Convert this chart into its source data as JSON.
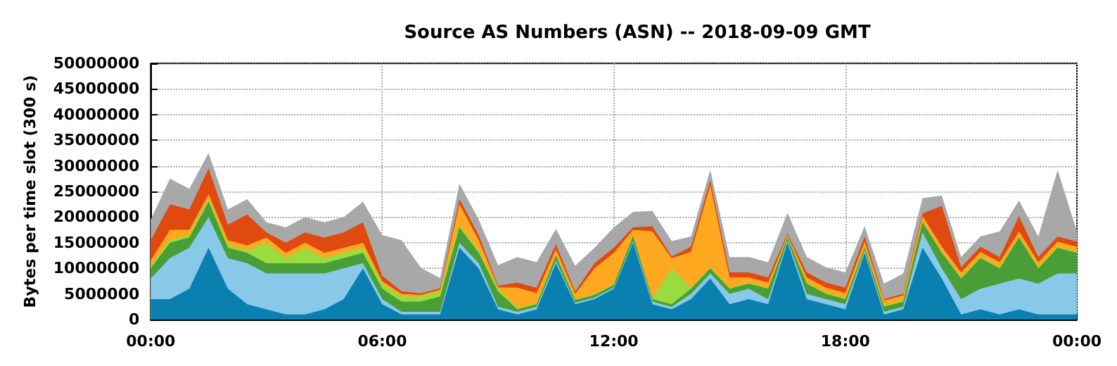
{
  "chart_data": {
    "type": "area",
    "stacked": true,
    "title": "Source AS Numbers (ASN) -- 2018-09-09 GMT",
    "ylabel": "Bytes per time slot (300 s)",
    "x": [
      0,
      0.5,
      1,
      1.5,
      2,
      2.5,
      3,
      3.5,
      4,
      4.5,
      5,
      5.5,
      6,
      6.5,
      7,
      7.5,
      8,
      8.5,
      9,
      9.5,
      10,
      10.5,
      11,
      11.5,
      12,
      12.5,
      13,
      13.5,
      14,
      14.5,
      15,
      15.5,
      16,
      16.5,
      17,
      17.5,
      18,
      18.5,
      19,
      19.5,
      20,
      20.5,
      21,
      21.5,
      22,
      22.5,
      23,
      23.5,
      24
    ],
    "series": [
      {
        "color": "#0a80b0",
        "values": [
          4000000.0,
          4000000.0,
          6000000.0,
          14000000.0,
          6000000.0,
          3000000.0,
          2000000.0,
          1000000.0,
          1000000.0,
          2000000.0,
          4000000.0,
          10000000.0,
          3000000.0,
          1000000.0,
          1000000.0,
          1000000.0,
          14000000.0,
          10000000.0,
          2000000.0,
          1000000.0,
          2000000.0,
          11000000.0,
          3000000.0,
          4000000.0,
          6000000.0,
          15000000.0,
          3000000.0,
          2000000.0,
          4000000.0,
          8000000.0,
          3000000.0,
          4000000.0,
          3000000.0,
          15000000.0,
          4000000.0,
          3000000.0,
          2000000.0,
          13000000.0,
          1000000.0,
          2000000.0,
          14000000.0,
          8000000.0,
          1000000.0,
          2000000.0,
          1000000.0,
          2000000.0,
          1000000.0,
          1000000.0,
          1000000.0
        ]
      },
      {
        "color": "#88c8e8",
        "values": [
          4000000.0,
          8000000.0,
          8000000.0,
          6000000.0,
          6000000.0,
          8000000.0,
          7000000.0,
          8000000.0,
          8000000.0,
          7000000.0,
          6000000.0,
          1000000.0,
          1000000.0,
          500000.0,
          500000.0,
          500000.0,
          1000000.0,
          1000000.0,
          500000.0,
          500000.0,
          500000.0,
          500000.0,
          300000.0,
          300000.0,
          300000.0,
          300000.0,
          500000.0,
          500000.0,
          1000000.0,
          1000000.0,
          2000000.0,
          2000000.0,
          1000000.0,
          500000.0,
          1000000.0,
          1000000.0,
          1000000.0,
          500000.0,
          500000.0,
          500000.0,
          3000000.0,
          2000000.0,
          3000000.0,
          4000000.0,
          6000000.0,
          6000000.0,
          6000000.0,
          8000000.0,
          8000000.0
        ]
      },
      {
        "color": "#4a9e38",
        "values": [
          2000000.0,
          3000000.0,
          2000000.0,
          3000000.0,
          2000000.0,
          2000000.0,
          2000000.0,
          2000000.0,
          2000000.0,
          2000000.0,
          2000000.0,
          2000000.0,
          2000000.0,
          2000000.0,
          2000000.0,
          3000000.0,
          3000000.0,
          2000000.0,
          3000000.0,
          500000.0,
          500000.0,
          1000000.0,
          500000.0,
          500000.0,
          500000.0,
          1000000.0,
          500000.0,
          500000.0,
          1000000.0,
          1000000.0,
          1000000.0,
          1000000.0,
          2000000.0,
          500000.0,
          2000000.0,
          1000000.0,
          1000000.0,
          500000.0,
          1000000.0,
          1000000.0,
          2000000.0,
          3000000.0,
          4000000.0,
          6000000.0,
          3000000.0,
          8000000.0,
          3000000.0,
          5000000.0,
          4000000.0
        ]
      },
      {
        "color": "#98dc40",
        "values": [
          500000.0,
          500000.0,
          500000.0,
          500000.0,
          500000.0,
          500000.0,
          4000000.0,
          1000000.0,
          3000000.0,
          1000000.0,
          1000000.0,
          1000000.0,
          1000000.0,
          1000000.0,
          1000000.0,
          1000000.0,
          500000.0,
          500000.0,
          500000.0,
          200000.0,
          200000.0,
          200000.0,
          200000.0,
          200000.0,
          200000.0,
          200000.0,
          200000.0,
          7000000.0,
          200000.0,
          200000.0,
          200000.0,
          200000.0,
          200000.0,
          200000.0,
          200000.0,
          200000.0,
          200000.0,
          200000.0,
          200000.0,
          200000.0,
          200000.0,
          200000.0,
          200000.0,
          200000.0,
          200000.0,
          200000.0,
          200000.0,
          200000.0,
          200000.0
        ]
      },
      {
        "color": "#ffa820",
        "values": [
          1000000.0,
          2000000.0,
          1000000.0,
          1000000.0,
          1000000.0,
          1000000.0,
          1000000.0,
          1000000.0,
          1000000.0,
          1000000.0,
          1000000.0,
          1000000.0,
          500000.0,
          500000.0,
          300000.0,
          300000.0,
          4000000.0,
          2000000.0,
          300000.0,
          4000000.0,
          2000000.0,
          1000000.0,
          1000000.0,
          5000000.0,
          6000000.0,
          1000000.0,
          13000000.0,
          2000000.0,
          7000000.0,
          16000000.0,
          2000000.0,
          1000000.0,
          1000000.0,
          300000.0,
          1000000.0,
          1000000.0,
          1000000.0,
          1000000.0,
          1000000.0,
          1000000.0,
          1000000.0,
          1000000.0,
          1000000.0,
          1000000.0,
          1000000.0,
          1000000.0,
          1000000.0,
          1000000.0,
          1000000.0
        ]
      },
      {
        "color": "#e04a10",
        "values": [
          4000000.0,
          5000000.0,
          4000000.0,
          5000000.0,
          3000000.0,
          6000000.0,
          1000000.0,
          2000000.0,
          2000000.0,
          3000000.0,
          3000000.0,
          4000000.0,
          1000000.0,
          500000.0,
          300000.0,
          300000.0,
          1000000.0,
          1000000.0,
          300000.0,
          1000000.0,
          1000000.0,
          1000000.0,
          500000.0,
          1000000.0,
          1000000.0,
          500000.0,
          1000000.0,
          300000.0,
          1000000.0,
          1000000.0,
          1000000.0,
          1000000.0,
          1000000.0,
          300000.0,
          1000000.0,
          1000000.0,
          1000000.0,
          1000000.0,
          300000.0,
          300000.0,
          500000.0,
          8000000.0,
          1000000.0,
          1000000.0,
          1000000.0,
          3000000.0,
          1000000.0,
          1000000.0,
          1000000.0
        ]
      },
      {
        "color": "#a8a8a8",
        "values": [
          4000000.0,
          5000000.0,
          4000000.0,
          3000000.0,
          3000000.0,
          3000000.0,
          2000000.0,
          3000000.0,
          3000000.0,
          3000000.0,
          3000000.0,
          4000000.0,
          8000000.0,
          10000000.0,
          5000000.0,
          2000000.0,
          3000000.0,
          3000000.0,
          4000000.0,
          5000000.0,
          5000000.0,
          3000000.0,
          5000000.0,
          3000000.0,
          4000000.0,
          3000000.0,
          3000000.0,
          3000000.0,
          2000000.0,
          2000000.0,
          3000000.0,
          3000000.0,
          3000000.0,
          4000000.0,
          3000000.0,
          3000000.0,
          3000000.0,
          2000000.0,
          3000000.0,
          4000000.0,
          3000000.0,
          2000000.0,
          2000000.0,
          2000000.0,
          5000000.0,
          3000000.0,
          4000000.0,
          13000000.0,
          2000000.0
        ]
      }
    ],
    "xlim": [
      0,
      24
    ],
    "xticks": [
      {
        "value": 0,
        "label": "00:00"
      },
      {
        "value": 6,
        "label": "06:00"
      },
      {
        "value": 12,
        "label": "12:00"
      },
      {
        "value": 18,
        "label": "18:00"
      },
      {
        "value": 24,
        "label": "00:00"
      }
    ],
    "ylim": [
      0,
      50000000
    ],
    "yticks": [
      0,
      5000000,
      10000000,
      15000000,
      20000000,
      25000000,
      30000000,
      35000000,
      40000000,
      45000000,
      50000000
    ],
    "grid": true
  }
}
